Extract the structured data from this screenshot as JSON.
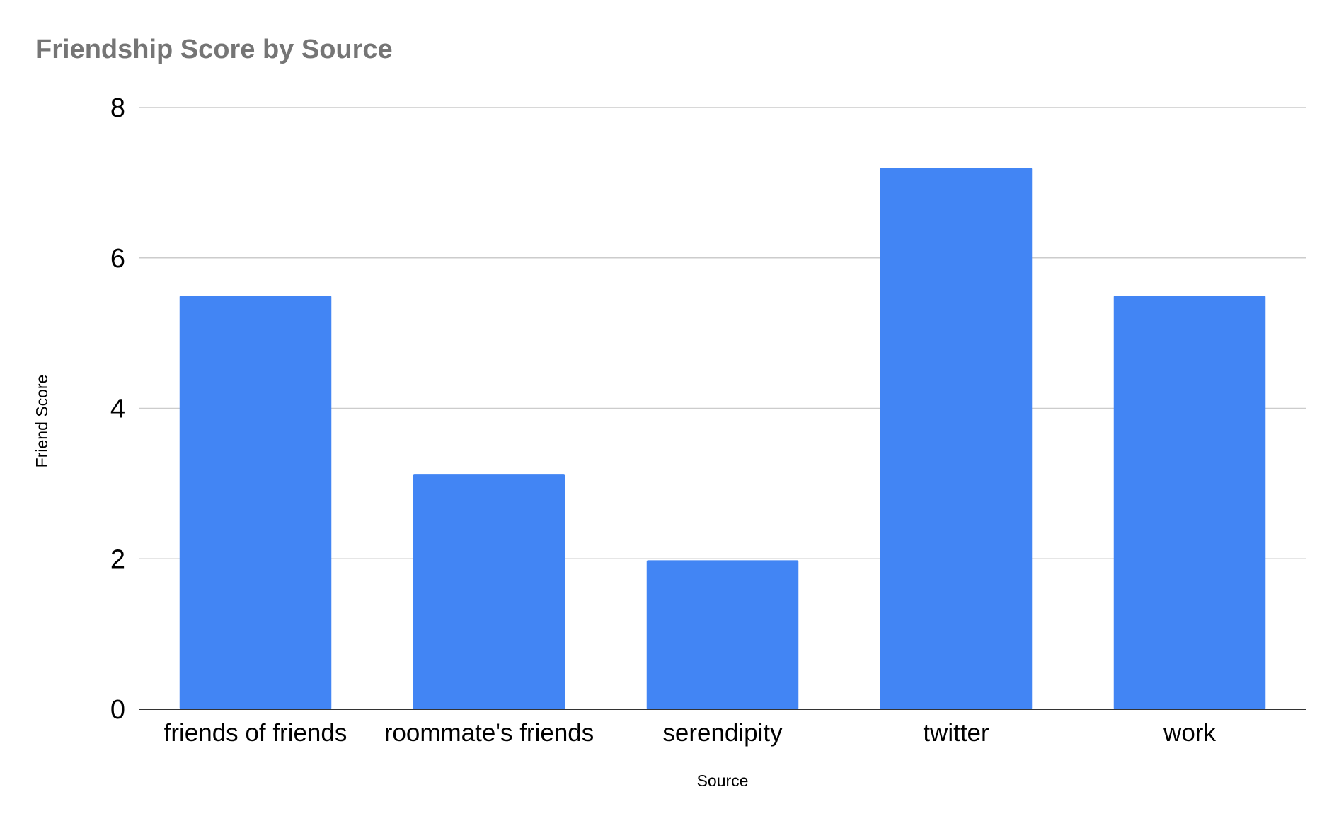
{
  "chart_data": {
    "type": "bar",
    "title": "Friendship Score by Source",
    "xlabel": "Source",
    "ylabel": "Friend Score",
    "categories": [
      "friends of friends",
      "roommate's friends",
      "serendipity",
      "twitter",
      "work"
    ],
    "series": [
      {
        "values": [
          5.5,
          3.12,
          1.98,
          7.2,
          5.5
        ],
        "color": "#4285f4"
      }
    ],
    "ylim": [
      0,
      8
    ],
    "yticks": [
      0,
      2,
      4,
      6,
      8
    ],
    "grid": true,
    "legend": "none"
  }
}
